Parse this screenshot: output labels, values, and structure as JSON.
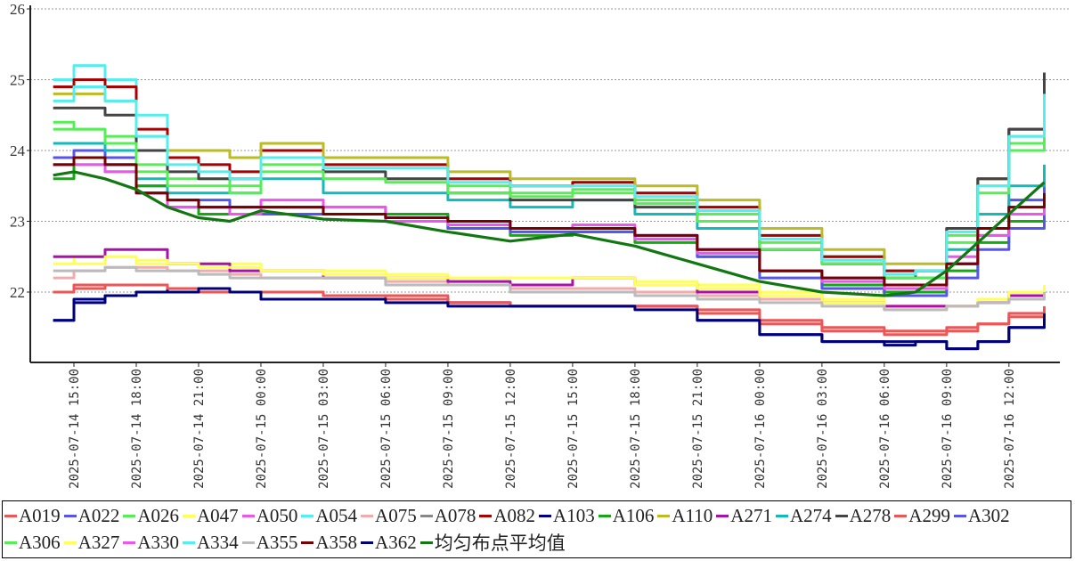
{
  "chart_data": {
    "type": "line",
    "title": "",
    "xlabel": "",
    "ylabel": "",
    "ylim": [
      21,
      26
    ],
    "yticks": [
      22,
      23,
      24,
      25,
      26
    ],
    "grid": "horizontal dashed",
    "legend_placement": "bottom",
    "x_hours_from_2025-07-14_00:00": [
      14,
      15,
      16.5,
      18,
      19.5,
      21,
      22.5,
      24,
      27,
      30,
      33,
      36,
      39,
      42,
      45,
      48,
      51,
      54,
      55.5,
      57,
      58.5,
      60,
      61.7
    ],
    "xticks": [
      {
        "hour": 15,
        "label": "2025-07-14  15:00"
      },
      {
        "hour": 18,
        "label": "2025-07-14  18:00"
      },
      {
        "hour": 21,
        "label": "2025-07-14  21:00"
      },
      {
        "hour": 24,
        "label": "2025-07-15  00:00"
      },
      {
        "hour": 27,
        "label": "2025-07-15  03:00"
      },
      {
        "hour": 30,
        "label": "2025-07-15  06:00"
      },
      {
        "hour": 33,
        "label": "2025-07-15  09:00"
      },
      {
        "hour": 36,
        "label": "2025-07-15  12:00"
      },
      {
        "hour": 39,
        "label": "2025-07-15  15:00"
      },
      {
        "hour": 42,
        "label": "2025-07-15  18:00"
      },
      {
        "hour": 45,
        "label": "2025-07-15  21:00"
      },
      {
        "hour": 48,
        "label": "2025-07-16  00:00"
      },
      {
        "hour": 51,
        "label": "2025-07-16  03:00"
      },
      {
        "hour": 54,
        "label": "2025-07-16  06:00"
      },
      {
        "hour": 57,
        "label": "2025-07-16  09:00"
      },
      {
        "hour": 60,
        "label": "2025-07-16  12:00"
      }
    ],
    "series": [
      {
        "name": "A019",
        "color": "#ee5555",
        "step": true,
        "values": [
          22.0,
          22.1,
          22.1,
          22.1,
          22.05,
          22.0,
          22.0,
          22.0,
          21.95,
          21.95,
          21.85,
          21.8,
          21.8,
          21.8,
          21.75,
          21.6,
          21.5,
          21.45,
          21.45,
          21.5,
          21.55,
          21.7,
          21.8
        ]
      },
      {
        "name": "A022",
        "color": "#5555ee",
        "step": true,
        "values": [
          23.9,
          24.0,
          23.9,
          23.5,
          23.3,
          23.3,
          23.2,
          23.2,
          23.2,
          23.1,
          23.0,
          22.9,
          22.9,
          22.8,
          22.6,
          22.3,
          22.2,
          22.0,
          22.0,
          22.4,
          22.9,
          23.3,
          23.7
        ]
      },
      {
        "name": "A026",
        "color": "#55ee55",
        "step": true,
        "values": [
          24.3,
          24.3,
          24.2,
          23.8,
          23.6,
          23.6,
          23.5,
          23.8,
          23.6,
          23.6,
          23.5,
          23.4,
          23.45,
          23.3,
          23.1,
          22.7,
          22.5,
          22.3,
          22.3,
          22.8,
          23.5,
          24.1,
          24.7
        ]
      },
      {
        "name": "A047",
        "color": "#ffff55",
        "step": true,
        "values": [
          22.4,
          22.5,
          22.5,
          22.4,
          22.4,
          22.4,
          22.4,
          22.3,
          22.3,
          22.25,
          22.2,
          22.2,
          22.2,
          22.15,
          22.1,
          22.0,
          21.9,
          21.8,
          21.8,
          21.8,
          21.9,
          22.0,
          22.1
        ]
      },
      {
        "name": "A050",
        "color": "#ee55ee",
        "step": true,
        "values": [
          23.8,
          23.9,
          23.8,
          23.4,
          23.3,
          23.2,
          23.2,
          23.3,
          23.2,
          23.1,
          23.0,
          22.9,
          22.95,
          22.8,
          22.6,
          22.3,
          22.2,
          22.1,
          22.1,
          22.5,
          22.9,
          23.2,
          23.4
        ]
      },
      {
        "name": "A054",
        "color": "#55eeee",
        "step": true,
        "values": [
          25.0,
          25.2,
          25.0,
          24.5,
          23.9,
          23.8,
          23.7,
          24.0,
          23.8,
          23.8,
          23.6,
          23.5,
          23.55,
          23.4,
          23.2,
          22.8,
          22.5,
          22.3,
          22.3,
          22.9,
          23.6,
          24.3,
          24.9
        ]
      },
      {
        "name": "A075",
        "color": "#f4aaaa",
        "step": true,
        "values": [
          22.2,
          22.3,
          22.35,
          22.35,
          22.3,
          22.3,
          22.25,
          22.2,
          22.2,
          22.15,
          22.1,
          22.05,
          22.05,
          22.0,
          21.95,
          21.9,
          21.85,
          21.8,
          21.8,
          21.8,
          21.85,
          21.95,
          22.0
        ]
      },
      {
        "name": "A078",
        "color": "#888888",
        "step": true,
        "values": [
          23.8,
          23.9,
          23.8,
          23.4,
          23.3,
          23.2,
          23.2,
          23.2,
          23.1,
          23.05,
          22.95,
          22.9,
          22.9,
          22.75,
          22.55,
          22.3,
          22.2,
          22.1,
          22.1,
          22.4,
          22.8,
          23.1,
          23.2
        ]
      },
      {
        "name": "A082",
        "color": "#aa0000",
        "step": true,
        "values": [
          24.9,
          25.0,
          24.9,
          24.3,
          23.9,
          23.8,
          23.7,
          24.0,
          23.8,
          23.8,
          23.6,
          23.5,
          23.55,
          23.4,
          23.2,
          22.8,
          22.5,
          22.3,
          22.3,
          22.9,
          23.6,
          24.3,
          25.0
        ]
      },
      {
        "name": "A103",
        "color": "#000088",
        "step": true,
        "values": [
          21.6,
          21.9,
          21.95,
          22.0,
          22.05,
          22.05,
          22.0,
          21.9,
          21.9,
          21.9,
          21.85,
          21.8,
          21.8,
          21.8,
          21.6,
          21.4,
          21.3,
          21.3,
          21.3,
          21.2,
          21.3,
          21.5,
          21.7
        ]
      },
      {
        "name": "A106",
        "color": "#11aa11",
        "step": true,
        "values": [
          23.6,
          23.8,
          23.7,
          23.5,
          23.2,
          23.1,
          23.1,
          23.2,
          23.1,
          23.1,
          22.9,
          22.8,
          22.85,
          22.7,
          22.5,
          22.3,
          22.1,
          22.0,
          22.0,
          22.3,
          22.7,
          23.0,
          23.2
        ]
      },
      {
        "name": "A110",
        "color": "#bbbb22",
        "step": true,
        "values": [
          24.8,
          24.8,
          24.7,
          24.2,
          24.0,
          24.0,
          23.9,
          24.1,
          23.9,
          23.9,
          23.7,
          23.6,
          23.6,
          23.5,
          23.3,
          22.9,
          22.6,
          22.4,
          22.4,
          22.9,
          23.6,
          24.2,
          24.6
        ]
      },
      {
        "name": "A271",
        "color": "#aa11aa",
        "step": true,
        "values": [
          22.5,
          22.5,
          22.6,
          22.6,
          22.4,
          22.4,
          22.3,
          22.3,
          22.2,
          22.2,
          22.15,
          22.1,
          22.2,
          22.1,
          22.0,
          21.95,
          21.85,
          21.8,
          21.8,
          21.8,
          21.85,
          21.95,
          22.0
        ]
      },
      {
        "name": "A274",
        "color": "#11bbbb",
        "step": true,
        "values": [
          24.1,
          24.1,
          24.0,
          23.6,
          23.4,
          23.4,
          23.4,
          23.6,
          23.4,
          23.4,
          23.3,
          23.2,
          23.3,
          23.1,
          22.9,
          22.6,
          22.4,
          22.2,
          22.2,
          22.6,
          23.1,
          23.5,
          23.8
        ]
      },
      {
        "name": "A278",
        "color": "#444444",
        "step": true,
        "values": [
          24.6,
          24.6,
          24.5,
          24.0,
          23.7,
          23.6,
          23.6,
          23.9,
          23.7,
          23.6,
          23.4,
          23.3,
          23.3,
          23.2,
          23.0,
          22.6,
          22.4,
          22.2,
          22.3,
          22.9,
          23.6,
          24.3,
          25.1
        ]
      },
      {
        "name": "A299",
        "color": "#ee5555",
        "step": true,
        "values": [
          22.0,
          22.05,
          22.1,
          22.1,
          22.05,
          22.0,
          22.0,
          22.0,
          21.95,
          21.9,
          21.85,
          21.8,
          21.8,
          21.8,
          21.7,
          21.55,
          21.45,
          21.4,
          21.4,
          21.45,
          21.55,
          21.65,
          21.75
        ]
      },
      {
        "name": "A302",
        "color": "#5555ee",
        "step": true,
        "values": [
          23.9,
          23.9,
          23.8,
          23.4,
          23.2,
          23.2,
          23.1,
          23.1,
          23.1,
          23.0,
          22.9,
          22.85,
          22.85,
          22.75,
          22.5,
          22.2,
          22.05,
          21.95,
          21.95,
          22.2,
          22.6,
          22.9,
          23.1
        ]
      },
      {
        "name": "A306",
        "color": "#55ee55",
        "step": true,
        "values": [
          24.4,
          24.3,
          24.1,
          23.7,
          23.5,
          23.5,
          23.4,
          23.7,
          23.6,
          23.55,
          23.4,
          23.35,
          23.4,
          23.25,
          23.0,
          22.6,
          22.4,
          22.2,
          22.2,
          22.7,
          23.4,
          24.0,
          24.6
        ]
      },
      {
        "name": "A327",
        "color": "#ffff55",
        "step": true,
        "values": [
          22.4,
          22.4,
          22.5,
          22.45,
          22.4,
          22.35,
          22.35,
          22.3,
          22.25,
          22.2,
          22.2,
          22.2,
          22.2,
          22.1,
          22.05,
          21.95,
          21.85,
          21.75,
          21.75,
          21.8,
          21.9,
          22.0,
          22.1
        ]
      },
      {
        "name": "A330",
        "color": "#ee55ee",
        "step": true,
        "values": [
          23.8,
          23.8,
          23.7,
          23.4,
          23.2,
          23.2,
          23.1,
          23.2,
          23.1,
          23.0,
          22.95,
          22.9,
          22.9,
          22.75,
          22.55,
          22.3,
          22.15,
          22.05,
          22.05,
          22.4,
          22.8,
          23.1,
          23.4
        ]
      },
      {
        "name": "A334",
        "color": "#55eeee",
        "step": true,
        "values": [
          24.7,
          24.9,
          24.7,
          24.2,
          23.8,
          23.7,
          23.6,
          23.9,
          23.75,
          23.75,
          23.55,
          23.5,
          23.5,
          23.35,
          23.15,
          22.75,
          22.45,
          22.25,
          22.3,
          22.85,
          23.5,
          24.2,
          24.8
        ]
      },
      {
        "name": "A355",
        "color": "#bbbbbb",
        "step": true,
        "values": [
          22.3,
          22.3,
          22.35,
          22.3,
          22.3,
          22.25,
          22.2,
          22.2,
          22.2,
          22.1,
          22.1,
          22.0,
          22.0,
          21.95,
          21.9,
          21.85,
          21.8,
          21.75,
          21.75,
          21.8,
          21.85,
          21.9,
          22.0
        ]
      },
      {
        "name": "A358",
        "color": "#770000",
        "step": true,
        "values": [
          23.8,
          23.9,
          23.8,
          23.4,
          23.3,
          23.2,
          23.2,
          23.2,
          23.1,
          23.05,
          23.0,
          22.9,
          22.9,
          22.8,
          22.6,
          22.3,
          22.2,
          22.1,
          22.1,
          22.4,
          22.9,
          23.2,
          23.4
        ]
      },
      {
        "name": "A362",
        "color": "#000077",
        "step": true,
        "values": [
          21.6,
          21.85,
          21.95,
          22.0,
          22.0,
          22.05,
          22.0,
          21.9,
          21.9,
          21.85,
          21.8,
          21.8,
          21.8,
          21.75,
          21.6,
          21.4,
          21.3,
          21.25,
          21.3,
          21.2,
          21.3,
          21.5,
          21.7
        ]
      },
      {
        "name": "均匀布点平均值",
        "color": "#117711",
        "step": false,
        "values": [
          23.65,
          23.7,
          23.6,
          23.45,
          23.2,
          23.05,
          23.0,
          23.15,
          23.03,
          23.0,
          22.85,
          22.72,
          22.82,
          22.65,
          22.4,
          22.15,
          22.0,
          21.95,
          22.0,
          22.3,
          22.7,
          23.1,
          23.55
        ]
      }
    ]
  }
}
